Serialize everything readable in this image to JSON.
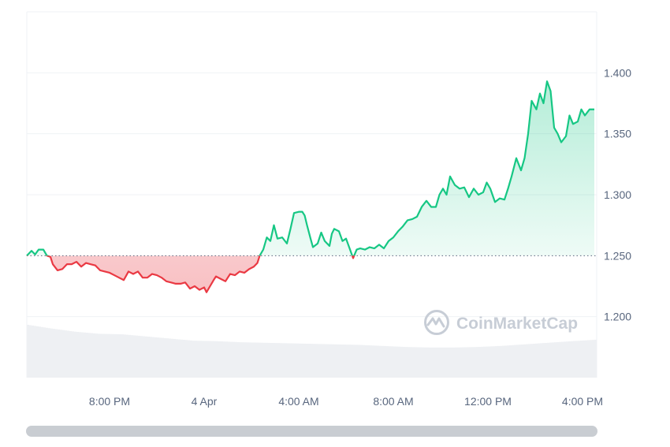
{
  "watermark": {
    "text": "CoinMarketCap",
    "icon": "coinmarketcap-logo-icon"
  },
  "colors": {
    "up": "#16c784",
    "down": "#ea3943",
    "grid": "#eff2f5",
    "baseline": "#58667e",
    "volume": "#eef0f3"
  },
  "chart_data": {
    "type": "area",
    "x_unit": "hours",
    "x_domain": [
      0,
      24.1
    ],
    "ylim": [
      1.15,
      1.45
    ],
    "baseline": 1.25,
    "grid": true,
    "y_ticks": [
      {
        "value": 1.4,
        "label": "1.400"
      },
      {
        "value": 1.35,
        "label": "1.350"
      },
      {
        "value": 1.3,
        "label": "1.300"
      },
      {
        "value": 1.25,
        "label": "1.250"
      },
      {
        "value": 1.2,
        "label": "1.200"
      }
    ],
    "x_ticks": [
      {
        "x": 3.5,
        "label": "8:00 PM"
      },
      {
        "x": 7.5,
        "label": "4 Apr"
      },
      {
        "x": 11.5,
        "label": "4:00 AM"
      },
      {
        "x": 15.5,
        "label": "8:00 AM"
      },
      {
        "x": 19.5,
        "label": "12:00 PM"
      },
      {
        "x": 23.5,
        "label": "4:00 PM"
      }
    ],
    "series": [
      {
        "values": [
          [
            0,
            1.25
          ],
          [
            0.2,
            1.254
          ],
          [
            0.35,
            1.251
          ],
          [
            0.5,
            1.255
          ],
          [
            0.7,
            1.255
          ],
          [
            0.85,
            1.25
          ],
          [
            1.0,
            1.249
          ],
          [
            1.1,
            1.243
          ],
          [
            1.3,
            1.238
          ],
          [
            1.5,
            1.239
          ],
          [
            1.7,
            1.243
          ],
          [
            1.9,
            1.243
          ],
          [
            2.1,
            1.245
          ],
          [
            2.3,
            1.241
          ],
          [
            2.5,
            1.244
          ],
          [
            2.7,
            1.243
          ],
          [
            2.9,
            1.242
          ],
          [
            3.1,
            1.238
          ],
          [
            3.3,
            1.237
          ],
          [
            3.5,
            1.236
          ],
          [
            3.7,
            1.234
          ],
          [
            3.9,
            1.232
          ],
          [
            4.1,
            1.23
          ],
          [
            4.3,
            1.237
          ],
          [
            4.5,
            1.235
          ],
          [
            4.7,
            1.237
          ],
          [
            4.9,
            1.232
          ],
          [
            5.1,
            1.232
          ],
          [
            5.3,
            1.235
          ],
          [
            5.5,
            1.234
          ],
          [
            5.7,
            1.232
          ],
          [
            5.9,
            1.229
          ],
          [
            6.1,
            1.228
          ],
          [
            6.3,
            1.227
          ],
          [
            6.5,
            1.227
          ],
          [
            6.7,
            1.228
          ],
          [
            6.9,
            1.223
          ],
          [
            7.1,
            1.225
          ],
          [
            7.3,
            1.222
          ],
          [
            7.5,
            1.224
          ],
          [
            7.6,
            1.22
          ],
          [
            7.75,
            1.225
          ],
          [
            7.9,
            1.23
          ],
          [
            8.0,
            1.233
          ],
          [
            8.2,
            1.231
          ],
          [
            8.4,
            1.229
          ],
          [
            8.6,
            1.235
          ],
          [
            8.8,
            1.234
          ],
          [
            9.0,
            1.237
          ],
          [
            9.2,
            1.236
          ],
          [
            9.4,
            1.239
          ],
          [
            9.6,
            1.241
          ],
          [
            9.75,
            1.244
          ],
          [
            9.85,
            1.25
          ],
          [
            10.0,
            1.255
          ],
          [
            10.15,
            1.265
          ],
          [
            10.3,
            1.262
          ],
          [
            10.45,
            1.275
          ],
          [
            10.6,
            1.264
          ],
          [
            10.8,
            1.265
          ],
          [
            11.0,
            1.26
          ],
          [
            11.15,
            1.272
          ],
          [
            11.3,
            1.285
          ],
          [
            11.5,
            1.286
          ],
          [
            11.65,
            1.286
          ],
          [
            11.75,
            1.283
          ],
          [
            11.85,
            1.275
          ],
          [
            12.0,
            1.264
          ],
          [
            12.1,
            1.257
          ],
          [
            12.3,
            1.26
          ],
          [
            12.45,
            1.269
          ],
          [
            12.6,
            1.262
          ],
          [
            12.8,
            1.258
          ],
          [
            12.9,
            1.268
          ],
          [
            13.0,
            1.272
          ],
          [
            13.2,
            1.27
          ],
          [
            13.35,
            1.262
          ],
          [
            13.5,
            1.264
          ],
          [
            13.65,
            1.256
          ],
          [
            13.8,
            1.248
          ],
          [
            13.95,
            1.255
          ],
          [
            14.1,
            1.256
          ],
          [
            14.3,
            1.255
          ],
          [
            14.5,
            1.257
          ],
          [
            14.7,
            1.256
          ],
          [
            14.9,
            1.259
          ],
          [
            15.1,
            1.256
          ],
          [
            15.3,
            1.262
          ],
          [
            15.5,
            1.265
          ],
          [
            15.7,
            1.27
          ],
          [
            15.9,
            1.274
          ],
          [
            16.1,
            1.279
          ],
          [
            16.3,
            1.28
          ],
          [
            16.5,
            1.282
          ],
          [
            16.7,
            1.29
          ],
          [
            16.9,
            1.295
          ],
          [
            17.1,
            1.29
          ],
          [
            17.3,
            1.29
          ],
          [
            17.45,
            1.3
          ],
          [
            17.6,
            1.305
          ],
          [
            17.75,
            1.3
          ],
          [
            17.9,
            1.315
          ],
          [
            18.1,
            1.308
          ],
          [
            18.3,
            1.305
          ],
          [
            18.5,
            1.306
          ],
          [
            18.7,
            1.298
          ],
          [
            18.9,
            1.305
          ],
          [
            19.1,
            1.3
          ],
          [
            19.3,
            1.302
          ],
          [
            19.45,
            1.31
          ],
          [
            19.6,
            1.305
          ],
          [
            19.8,
            1.294
          ],
          [
            20.0,
            1.297
          ],
          [
            20.2,
            1.296
          ],
          [
            20.35,
            1.305
          ],
          [
            20.5,
            1.315
          ],
          [
            20.7,
            1.33
          ],
          [
            20.9,
            1.32
          ],
          [
            21.05,
            1.33
          ],
          [
            21.2,
            1.35
          ],
          [
            21.35,
            1.377
          ],
          [
            21.55,
            1.37
          ],
          [
            21.7,
            1.383
          ],
          [
            21.85,
            1.375
          ],
          [
            22.0,
            1.393
          ],
          [
            22.15,
            1.385
          ],
          [
            22.3,
            1.355
          ],
          [
            22.45,
            1.35
          ],
          [
            22.6,
            1.343
          ],
          [
            22.8,
            1.348
          ],
          [
            22.95,
            1.365
          ],
          [
            23.1,
            1.358
          ],
          [
            23.3,
            1.36
          ],
          [
            23.45,
            1.37
          ],
          [
            23.6,
            1.365
          ],
          [
            23.8,
            1.37
          ],
          [
            24.0,
            1.37
          ]
        ]
      }
    ],
    "volume": [
      [
        0,
        1.0
      ],
      [
        1.0,
        0.93
      ],
      [
        2.0,
        0.87
      ],
      [
        3.0,
        0.83
      ],
      [
        4.0,
        0.82
      ],
      [
        5.0,
        0.78
      ],
      [
        6.0,
        0.74
      ],
      [
        7.0,
        0.7
      ],
      [
        8.0,
        0.69
      ],
      [
        9.0,
        0.67
      ],
      [
        10.0,
        0.66
      ],
      [
        11.0,
        0.65
      ],
      [
        12.0,
        0.64
      ],
      [
        13.0,
        0.63
      ],
      [
        14.0,
        0.62
      ],
      [
        15.0,
        0.6
      ],
      [
        16.0,
        0.58
      ],
      [
        17.0,
        0.57
      ],
      [
        18.0,
        0.57
      ],
      [
        19.0,
        0.58
      ],
      [
        20.0,
        0.6
      ],
      [
        21.0,
        0.63
      ],
      [
        22.0,
        0.66
      ],
      [
        23.0,
        0.69
      ],
      [
        24.1,
        0.72
      ]
    ]
  }
}
